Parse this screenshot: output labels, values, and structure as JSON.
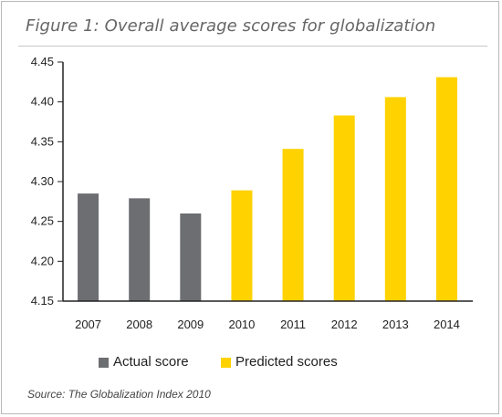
{
  "title": "Figure 1: Overall average scores for globalization",
  "source": "Source: The Globalization Index 2010",
  "colors": {
    "actual": "#6d6e71",
    "predicted": "#ffd200",
    "axis": "#222222"
  },
  "legend": [
    {
      "label": "Actual score",
      "color": "#6d6e71"
    },
    {
      "label": "Predicted scores",
      "color": "#ffd200"
    }
  ],
  "chart_data": {
    "type": "bar",
    "title": "Figure 1: Overall average scores for globalization",
    "xlabel": "",
    "ylabel": "",
    "categories": [
      "2007",
      "2008",
      "2009",
      "2010",
      "2011",
      "2012",
      "2013",
      "2014"
    ],
    "series": [
      {
        "name": "Actual score",
        "values": [
          4.285,
          4.279,
          4.26,
          null,
          null,
          null,
          null,
          null
        ]
      },
      {
        "name": "Predicted scores",
        "values": [
          null,
          null,
          null,
          4.289,
          4.341,
          4.383,
          4.406,
          4.431
        ]
      }
    ],
    "ylim": [
      4.15,
      4.45
    ],
    "yticks": [
      "4.15",
      "4.20",
      "4.25",
      "4.30",
      "4.35",
      "4.40",
      "4.45"
    ],
    "grid": false,
    "legend_position": "bottom"
  }
}
